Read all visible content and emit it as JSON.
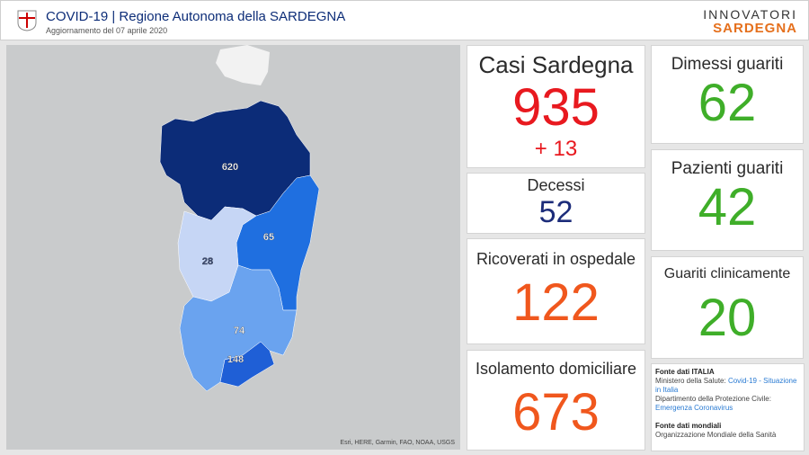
{
  "header": {
    "title": "COVID-19 | Regione Autonoma della SARDEGNA",
    "subtitle": "Aggiornamento del 07 aprile 2020",
    "logo": {
      "line1": "INNOVATORI",
      "line2": "SARDEGNA"
    }
  },
  "map": {
    "regions": [
      {
        "label": "620"
      },
      {
        "label": "65"
      },
      {
        "label": "28"
      },
      {
        "label": "74"
      },
      {
        "label": "148"
      }
    ],
    "attribution": "Esri, HERE, Garmin, FAO, NOAA, USGS"
  },
  "cards": [
    {
      "title": "Casi Sardegna",
      "value": "935",
      "delta": "+ 13"
    },
    {
      "title": "Decessi",
      "value": "52"
    },
    {
      "title": "Ricoverati in ospedale",
      "value": "122"
    },
    {
      "title": "Isolamento domiciliare",
      "value": "673"
    },
    {
      "title": "Dimessi guariti",
      "value": "62"
    },
    {
      "title": "Pazienti guariti",
      "value": "42"
    },
    {
      "title": "Guariti clinicamente",
      "value": "20"
    }
  ],
  "sources": {
    "italy_heading": "Fonte dati ITALIA",
    "ministry": "Ministero della Salute:",
    "ministry_link": "Covid-19 - Situazione in Italia",
    "civil": "Dipartimento della Protezione Civile:",
    "civil_link": "Emergenza Coronavirus",
    "world_heading": "Fonte dati mondiali",
    "world": "Organizzazione Mondiale della Sanità"
  }
}
